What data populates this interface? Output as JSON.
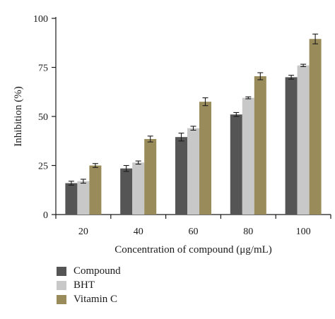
{
  "chart_data": {
    "type": "bar",
    "title": "",
    "xlabel": "Concentration of compound (μg/mL)",
    "ylabel": "Inhibition (%)",
    "ylim": [
      0,
      100
    ],
    "yticks": [
      "0",
      "25",
      "50",
      "75",
      "100"
    ],
    "categories": [
      "20",
      "40",
      "60",
      "80",
      "100"
    ],
    "series": [
      {
        "name": "Compound",
        "color": "#555555",
        "values": [
          16,
          23.5,
          39.5,
          51,
          70
        ],
        "errors": [
          1.0,
          1.5,
          2.0,
          1.0,
          1.0
        ]
      },
      {
        "name": "BHT",
        "color": "#c8c8c8",
        "values": [
          17,
          26.5,
          44,
          59.5,
          76
        ],
        "errors": [
          1.0,
          0.8,
          1.0,
          0.5,
          0.6
        ]
      },
      {
        "name": "Vitamin C",
        "color": "#9a8c5a",
        "values": [
          25,
          38.5,
          57.5,
          70.5,
          89.5
        ],
        "errors": [
          1.0,
          1.5,
          2.0,
          1.8,
          2.5
        ]
      }
    ],
    "grid": false,
    "legend_position": "bottom-left"
  }
}
